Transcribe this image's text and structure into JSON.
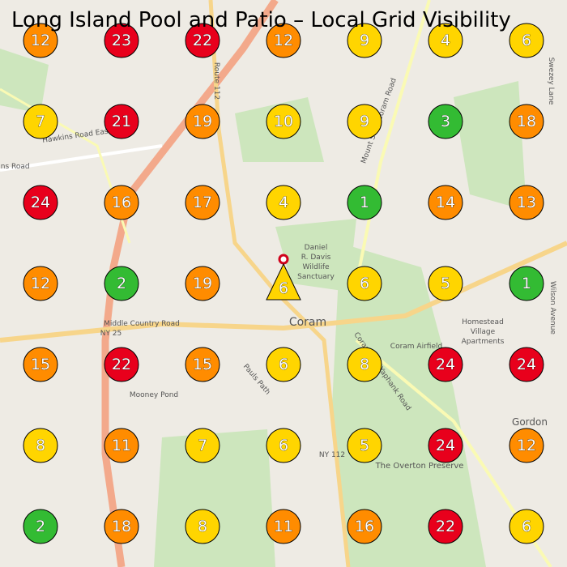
{
  "header": {
    "title": "Long Island Pool and Patio – Local Grid Visibility"
  },
  "grid": {
    "rows": [
      [
        {
          "rank": 12,
          "color": "#ff8c00"
        },
        {
          "rank": 23,
          "color": "#e8001c"
        },
        {
          "rank": 22,
          "color": "#e8001c"
        },
        {
          "rank": 12,
          "color": "#ff8c00"
        },
        {
          "rank": 9,
          "color": "#ffd500"
        },
        {
          "rank": 4,
          "color": "#ffd500"
        },
        {
          "rank": 6,
          "color": "#ffd500"
        }
      ],
      [
        {
          "rank": 7,
          "color": "#ffd500"
        },
        {
          "rank": 21,
          "color": "#e8001c"
        },
        {
          "rank": 19,
          "color": "#ff8c00"
        },
        {
          "rank": 10,
          "color": "#ffd500"
        },
        {
          "rank": 9,
          "color": "#ffd500"
        },
        {
          "rank": 3,
          "color": "#33bb33"
        },
        {
          "rank": 18,
          "color": "#ff8c00"
        }
      ],
      [
        {
          "rank": 24,
          "color": "#e8001c"
        },
        {
          "rank": 16,
          "color": "#ff8c00"
        },
        {
          "rank": 17,
          "color": "#ff8c00"
        },
        {
          "rank": 4,
          "color": "#ffd500"
        },
        {
          "rank": 1,
          "color": "#33bb33"
        },
        {
          "rank": 14,
          "color": "#ff8c00"
        },
        {
          "rank": 13,
          "color": "#ff8c00"
        }
      ],
      [
        {
          "rank": 12,
          "color": "#ff8c00"
        },
        {
          "rank": 2,
          "color": "#33bb33"
        },
        {
          "rank": 19,
          "color": "#ff8c00"
        },
        {
          "rank": 6,
          "color": "#ffd500"
        },
        {
          "rank": 6,
          "color": "#ffd500"
        },
        {
          "rank": 5,
          "color": "#ffd500"
        },
        {
          "rank": 1,
          "color": "#33bb33"
        }
      ],
      [
        {
          "rank": 15,
          "color": "#ff8c00"
        },
        {
          "rank": 22,
          "color": "#e8001c"
        },
        {
          "rank": 15,
          "color": "#ff8c00"
        },
        {
          "rank": 6,
          "color": "#ffd500"
        },
        {
          "rank": 8,
          "color": "#ffd500"
        },
        {
          "rank": 24,
          "color": "#e8001c"
        },
        {
          "rank": 24,
          "color": "#e8001c"
        }
      ],
      [
        {
          "rank": 8,
          "color": "#ffd500"
        },
        {
          "rank": 11,
          "color": "#ff8c00"
        },
        {
          "rank": 7,
          "color": "#ffd500"
        },
        {
          "rank": 6,
          "color": "#ffd500"
        },
        {
          "rank": 5,
          "color": "#ffd500"
        },
        {
          "rank": 24,
          "color": "#e8001c"
        },
        {
          "rank": 12,
          "color": "#ff8c00"
        }
      ],
      [
        {
          "rank": 2,
          "color": "#33bb33"
        },
        {
          "rank": 18,
          "color": "#ff8c00"
        },
        {
          "rank": 8,
          "color": "#ffd500"
        },
        {
          "rank": 11,
          "color": "#ff8c00"
        },
        {
          "rank": 16,
          "color": "#ff8c00"
        },
        {
          "rank": 22,
          "color": "#e8001c"
        },
        {
          "rank": 6,
          "color": "#ffd500"
        }
      ]
    ]
  },
  "map": {
    "labels": [
      "Coram",
      "Middle Country Road",
      "NY 25",
      "Route 112",
      "Hawkins Road East",
      "Hawkins Road",
      "Coram Airfield",
      "NY 112",
      "Pauls Path",
      "Mooney Pond",
      "The Overton Preserve",
      "Daniel",
      "R. Davis",
      "Wildlife",
      "Sanctuary",
      "Homestead",
      "Village",
      "Apartments",
      "Coram and Yaphank Road",
      "Mount Sinai-Coram Road",
      "Gordon",
      "Wilson Avenue",
      "Swezey Lane"
    ]
  }
}
